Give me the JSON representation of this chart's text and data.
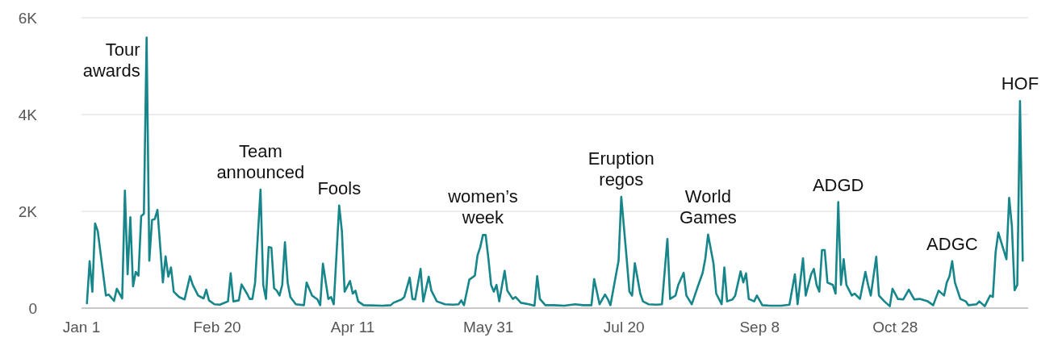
{
  "chart_data": {
    "type": "line",
    "color": "#17868a",
    "grid": "y",
    "marker": "none",
    "line_style": "solid",
    "xlim": [
      "--01-01",
      "--12-16"
    ],
    "xticks": [
      {
        "value": "--01-01",
        "label": "Jan 1"
      },
      {
        "value": "--02-20",
        "label": "Feb 20"
      },
      {
        "value": "--04-11",
        "label": "Apr 11"
      },
      {
        "value": "--05-31",
        "label": "May 31"
      },
      {
        "value": "--07-20",
        "label": "Jul 20"
      },
      {
        "value": "--09-08",
        "label": "Sep 8"
      },
      {
        "value": "--10-28",
        "label": "Oct 28"
      }
    ],
    "ylim": [
      0,
      6000
    ],
    "yticks": [
      0,
      {
        "value": 2000,
        "label": "2K"
      },
      {
        "value": 4000,
        "label": "4K"
      },
      {
        "value": 6000,
        "label": "6K"
      }
    ],
    "x": [
      "--01-03",
      "--01-04",
      "--01-05",
      "--01-06",
      "--01-07",
      "--01-10",
      "--01-11",
      "--01-13",
      "--01-14",
      "--01-16",
      "--01-17",
      "--01-18",
      "--01-19",
      "--01-20",
      "--01-21",
      "--01-22",
      "--01-23",
      "--01-24",
      "--01-25",
      "--01-26",
      "--01-27",
      "--01-28",
      "--01-29",
      "--01-31",
      "--02-01",
      "--02-02",
      "--02-03",
      "--02-04",
      "--02-06",
      "--02-08",
      "--02-10",
      "--02-11",
      "--02-13",
      "--02-15",
      "--02-16",
      "--02-17",
      "--02-19",
      "--02-21",
      "--02-24",
      "--02-25",
      "--02-26",
      "--02-28",
      "--03-01",
      "--03-03",
      "--03-04",
      "--03-05",
      "--03-06",
      "--03-08",
      "--03-09",
      "--03-10",
      "--03-11",
      "--03-12",
      "--03-13",
      "--03-14",
      "--03-15",
      "--03-16",
      "--03-17",
      "--03-18",
      "--03-19",
      "--03-21",
      "--03-24",
      "--03-25",
      "--03-27",
      "--03-29",
      "--03-30",
      "--03-31",
      "--04-02",
      "--04-03",
      "--04-04",
      "--04-06",
      "--04-07",
      "--04-08",
      "--04-10",
      "--04-11",
      "--04-12",
      "--04-13",
      "--04-15",
      "--04-22",
      "--04-25",
      "--04-26",
      "--04-29",
      "--04-30",
      "--05-02",
      "--05-03",
      "--05-04",
      "--05-06",
      "--05-07",
      "--05-09",
      "--05-10",
      "--05-12",
      "--05-15",
      "--05-18",
      "--05-20",
      "--05-21",
      "--05-22",
      "--05-24",
      "--05-26",
      "--05-27",
      "--05-28",
      "--05-29",
      "--05-30",
      "--05-31",
      "--06-01",
      "--06-02",
      "--06-03",
      "--06-04",
      "--06-06",
      "--06-07",
      "--06-09",
      "--06-10",
      "--06-12",
      "--06-15",
      "--06-17",
      "--06-18",
      "--06-19",
      "--06-21",
      "--06-24",
      "--06-28",
      "--07-02",
      "--07-05",
      "--07-08",
      "--07-09",
      "--07-11",
      "--07-13",
      "--07-14",
      "--07-15",
      "--07-18",
      "--07-19",
      "--07-21",
      "--07-22",
      "--07-23",
      "--07-24",
      "--07-26",
      "--07-27",
      "--07-29",
      "--08-01",
      "--08-03",
      "--08-05",
      "--08-06",
      "--08-08",
      "--08-09",
      "--08-11",
      "--08-12",
      "--08-14",
      "--08-16",
      "--08-18",
      "--08-19",
      "--08-20",
      "--08-22",
      "--08-23",
      "--08-25",
      "--08-26",
      "--08-27",
      "--08-29",
      "--08-30",
      "--09-01",
      "--09-02",
      "--09-03",
      "--09-04",
      "--09-06",
      "--09-07",
      "--09-09",
      "--09-12",
      "--09-16",
      "--09-19",
      "--09-21",
      "--09-22",
      "--09-24",
      "--09-25",
      "--09-27",
      "--09-28",
      "--09-29",
      "--09-30",
      "--10-01",
      "--10-02",
      "--10-03",
      "--10-05",
      "--10-06",
      "--10-07",
      "--10-08",
      "--10-09",
      "--10-10",
      "--10-12",
      "--10-13",
      "--10-15",
      "--10-17",
      "--10-18",
      "--10-19",
      "--10-21",
      "--10-22",
      "--10-24",
      "--10-26",
      "--10-27",
      "--10-29",
      "--10-31",
      "--11-02",
      "--11-04",
      "--11-06",
      "--11-09",
      "--11-11",
      "--11-13",
      "--11-15",
      "--11-16",
      "--11-17",
      "--11-18",
      "--11-19",
      "--11-21",
      "--11-23",
      "--11-24",
      "--11-27",
      "--11-28",
      "--11-30",
      "--12-02",
      "--12-03",
      "--12-04",
      "--12-05",
      "--12-08",
      "--12-09",
      "--12-10",
      "--12-11",
      "--12-12",
      "--12-13",
      "--12-14"
    ],
    "values": [
      100,
      970,
      340,
      1750,
      1590,
      260,
      280,
      150,
      400,
      200,
      2430,
      700,
      1880,
      450,
      750,
      670,
      1900,
      1950,
      5590,
      980,
      1820,
      1840,
      2030,
      530,
      1070,
      650,
      840,
      340,
      230,
      180,
      660,
      480,
      260,
      200,
      380,
      160,
      80,
      70,
      140,
      720,
      140,
      160,
      490,
      300,
      190,
      190,
      530,
      2450,
      480,
      190,
      1260,
      1250,
      410,
      360,
      260,
      480,
      1360,
      530,
      230,
      80,
      60,
      530,
      260,
      180,
      60,
      920,
      190,
      230,
      80,
      2120,
      1590,
      340,
      560,
      300,
      360,
      140,
      60,
      50,
      60,
      110,
      180,
      230,
      630,
      190,
      180,
      810,
      140,
      650,
      360,
      140,
      80,
      70,
      80,
      160,
      60,
      590,
      670,
      1090,
      1260,
      1510,
      1510,
      1030,
      480,
      340,
      480,
      140,
      770,
      360,
      190,
      230,
      110,
      80,
      50,
      660,
      190,
      60,
      60,
      50,
      80,
      60,
      60,
      600,
      80,
      280,
      190,
      60,
      980,
      2300,
      1020,
      340,
      260,
      930,
      300,
      140,
      80,
      70,
      80,
      1430,
      190,
      260,
      480,
      730,
      260,
      80,
      410,
      730,
      1030,
      1520,
      920,
      300,
      80,
      840,
      140,
      180,
      260,
      760,
      530,
      720,
      190,
      140,
      260,
      60,
      50,
      50,
      70,
      700,
      80,
      1030,
      260,
      700,
      810,
      480,
      340,
      1200,
      1200,
      530,
      480,
      300,
      2190,
      480,
      1010,
      480,
      260,
      300,
      190,
      750,
      480,
      260,
      1060,
      260,
      140,
      40,
      400,
      190,
      180,
      380,
      180,
      190,
      140,
      60,
      360,
      260,
      530,
      660,
      970,
      530,
      190,
      140,
      60,
      80,
      140,
      40,
      260,
      230,
      1150,
      1560,
      1010,
      2280,
      1700,
      370,
      480,
      4280,
      980
    ],
    "annotations": [
      {
        "text": "Tour\nawards",
        "x": "--01-25",
        "y": 5590
      },
      {
        "text": "Team\nannounced",
        "x": "--03-08",
        "y": 2450
      },
      {
        "text": "Fools",
        "x": "--04-06",
        "y": 2120
      },
      {
        "text": "women’s\nweek",
        "x": "--05-29",
        "y": 1510
      },
      {
        "text": "Eruption\nregos",
        "x": "--07-19",
        "y": 2300
      },
      {
        "text": "World\nGames",
        "x": "--08-20",
        "y": 1520
      },
      {
        "text": "ADGD",
        "x": "--10-07",
        "y": 2190
      },
      {
        "text": "ADGC",
        "x": "--11-18",
        "y": 970
      },
      {
        "text": "HOF",
        "x": "--12-13",
        "y": 4280
      }
    ]
  }
}
